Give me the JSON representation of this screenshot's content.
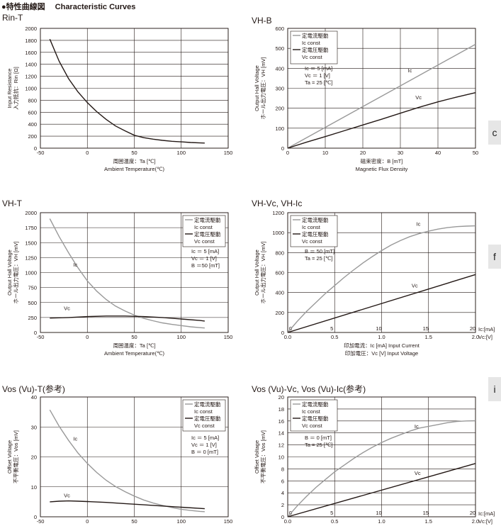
{
  "header": {
    "title": "●特性曲線図",
    "subtitle": "Characteristic Curves"
  },
  "side_tabs": [
    "c",
    "f",
    "i"
  ],
  "chart_data": [
    {
      "id": "rin",
      "title_main": "Rin-T",
      "title_sub": "",
      "type": "line",
      "xlabel": [
        "周囲温度：Ta [℃]",
        "Ambient Temperature(℃)"
      ],
      "ylabel": [
        "Input Resistance",
        "入力抵抗：Rin [Ω]"
      ],
      "xlim": [
        -50,
        150
      ],
      "xticks": [
        -50,
        0,
        50,
        100,
        150
      ],
      "ylim": [
        0,
        2000
      ],
      "yticks": [
        0,
        200,
        400,
        600,
        800,
        1000,
        1200,
        1400,
        1600,
        1800,
        2000
      ],
      "extra_x_labels": [],
      "series": [
        {
          "name": "",
          "color": "#231815",
          "x": [
            -40,
            -30,
            -20,
            -10,
            0,
            10,
            20,
            30,
            40,
            50,
            60,
            70,
            80,
            90,
            100,
            110,
            120,
            125
          ],
          "y": [
            1820,
            1450,
            1160,
            940,
            760,
            610,
            480,
            370,
            290,
            215,
            175,
            150,
            130,
            115,
            105,
            95,
            88,
            85
          ]
        }
      ],
      "legend": [],
      "conditions": [],
      "series_labels": []
    },
    {
      "id": "vhb",
      "title_main": "VH-B",
      "title_sub": "",
      "type": "line",
      "xlabel": [
        "磁束密度：B [mT]",
        "Magnetic Flux Density"
      ],
      "ylabel": [
        "Output Hall Voltage",
        "ホール出力電圧：VH [mV]"
      ],
      "xlim": [
        0,
        50
      ],
      "xticks": [
        0,
        10,
        20,
        30,
        40,
        50
      ],
      "ylim": [
        0,
        600
      ],
      "yticks": [
        0,
        100,
        200,
        300,
        400,
        500,
        600
      ],
      "extra_x_labels": [],
      "series": [
        {
          "name": "Ic",
          "color": "#999999",
          "x": [
            0,
            50
          ],
          "y": [
            0,
            520
          ]
        },
        {
          "name": "Vc",
          "color": "#231815",
          "x": [
            0,
            5,
            10,
            15,
            20,
            25,
            30,
            35,
            40,
            45,
            50
          ],
          "y": [
            0,
            30,
            58,
            87,
            116,
            145,
            175,
            205,
            232,
            256,
            278
          ]
        }
      ],
      "legend": [
        {
          "text": "定電流駆動",
          "color": "#999999"
        },
        {
          "text": "Ic const",
          "color": ""
        },
        {
          "text": "定電圧駆動",
          "color": "#231815"
        },
        {
          "text": "Vc const",
          "color": ""
        }
      ],
      "conditions": [
        "Ic ＝ 5 [mA]",
        "Vc ＝ 1 [V]",
        "Ta = 25 [℃]"
      ],
      "series_labels": [
        {
          "text": "Ic",
          "x": 32,
          "y": 380
        },
        {
          "text": "Vc",
          "x": 34,
          "y": 245
        }
      ]
    },
    {
      "id": "vht",
      "title_main": "VH-T",
      "title_sub": "",
      "type": "line",
      "xlabel": [
        "周囲温度：Ta [℃]",
        "Ambient Temperature(℃)"
      ],
      "ylabel": [
        "Output Hall Voltage",
        "ホール出力電圧：VH [mV]"
      ],
      "xlim": [
        -50,
        150
      ],
      "xticks": [
        -50,
        0,
        50,
        100,
        150
      ],
      "ylim": [
        0,
        2000
      ],
      "yticks": [
        0,
        250,
        500,
        750,
        1000,
        1250,
        1500,
        1750,
        2000
      ],
      "extra_x_labels": [],
      "series": [
        {
          "name": "Ic",
          "color": "#999999",
          "x": [
            -40,
            -30,
            -20,
            -10,
            0,
            10,
            20,
            30,
            40,
            50,
            60,
            70,
            80,
            90,
            100,
            110,
            120,
            125
          ],
          "y": [
            1900,
            1600,
            1330,
            1080,
            860,
            690,
            550,
            440,
            360,
            290,
            235,
            195,
            160,
            135,
            115,
            95,
            80,
            75
          ]
        },
        {
          "name": "Vc",
          "color": "#231815",
          "x": [
            -40,
            -20,
            0,
            20,
            40,
            60,
            80,
            100,
            120,
            125
          ],
          "y": [
            240,
            250,
            265,
            275,
            275,
            265,
            250,
            225,
            200,
            190
          ]
        }
      ],
      "legend": [
        {
          "text": "定電流駆動",
          "color": "#999999"
        },
        {
          "text": "Ic const",
          "color": ""
        },
        {
          "text": "定電圧駆動",
          "color": "#231815"
        },
        {
          "text": "Vc const",
          "color": ""
        }
      ],
      "conditions": [
        "Ic ＝ 5 [mA]",
        "Vc ＝ 1 [V]",
        "B ＝50 [mT]"
      ],
      "series_labels": [
        {
          "text": "Ic",
          "x": -15,
          "y": 1100
        },
        {
          "text": "Vc",
          "x": -25,
          "y": 370
        }
      ]
    },
    {
      "id": "vhvc",
      "title_main": "VH-Vc, VH-Ic",
      "title_sub": "",
      "type": "line",
      "xlabel": [
        "印加電流：Ic [mA] Input Current",
        "印加電圧：Vc [V] Input Voltage"
      ],
      "ylabel": [
        "Output Hall Voltage",
        "ホール出力電圧：VH [mV]"
      ],
      "xlim": [
        0,
        2
      ],
      "xticks": [
        0,
        0.5,
        1.0,
        1.5,
        2.0
      ],
      "xtick_labels": [
        "0.0",
        "0.5",
        "1.0",
        "1.5",
        "2.0"
      ],
      "xunit": "Vc:[V]",
      "ylim": [
        0,
        1200
      ],
      "yticks": [
        0,
        200,
        400,
        600,
        800,
        1000,
        1200
      ],
      "extra_x_labels": [
        "0",
        "5",
        "10",
        "15",
        "20"
      ],
      "extra_unit": "Ic:[mA]",
      "series": [
        {
          "name": "Ic",
          "color": "#999999",
          "x": [
            0,
            0.1,
            0.2,
            0.3,
            0.4,
            0.5,
            0.6,
            0.7,
            0.8,
            0.9,
            1.0,
            1.1,
            1.2,
            1.3,
            1.4,
            1.5,
            1.6,
            1.7,
            1.8,
            1.9,
            2.0
          ],
          "y": [
            0,
            110,
            210,
            300,
            390,
            470,
            550,
            625,
            695,
            760,
            820,
            875,
            920,
            960,
            990,
            1015,
            1035,
            1050,
            1060,
            1065,
            1068
          ]
        },
        {
          "name": "Vc",
          "color": "#231815",
          "x": [
            0,
            2.0
          ],
          "y": [
            0,
            580
          ]
        }
      ],
      "legend": [
        {
          "text": "定電流駆動",
          "color": "#999999"
        },
        {
          "text": "Ic const",
          "color": ""
        },
        {
          "text": "定電圧駆動",
          "color": "#231815"
        },
        {
          "text": "Vc const",
          "color": ""
        }
      ],
      "conditions": [
        "B ＝ 50 [mT]",
        "Ta = 25 [℃]"
      ],
      "series_labels": [
        {
          "text": "Ic",
          "x": 1.37,
          "y": 1070
        },
        {
          "text": "Vc",
          "x": 1.32,
          "y": 450
        }
      ]
    },
    {
      "id": "vost",
      "title_main": "Vos (Vu)-T",
      "title_sub": "(参考)",
      "type": "line",
      "xlabel": [
        "",
        ""
      ],
      "ylabel": [
        "Offset Voltage",
        "不平衡電圧：Vos [mV]"
      ],
      "xlim": [
        -50,
        150
      ],
      "xticks": [
        -50,
        0,
        50,
        100,
        150
      ],
      "ylim": [
        0,
        40
      ],
      "yticks": [
        0,
        10,
        20,
        30,
        40
      ],
      "extra_x_labels": [],
      "series": [
        {
          "name": "Ic",
          "color": "#999999",
          "x": [
            -40,
            -30,
            -20,
            -10,
            0,
            10,
            20,
            30,
            40,
            50,
            60,
            70,
            80,
            90,
            100,
            110,
            120,
            125
          ],
          "y": [
            35.7,
            30.2,
            25.5,
            21.3,
            17.8,
            14.8,
            12.2,
            10.1,
            8.4,
            6.9,
            5.6,
            4.6,
            3.8,
            3.1,
            2.5,
            2.1,
            1.8,
            1.7
          ]
        },
        {
          "name": "Vc",
          "color": "#231815",
          "x": [
            -40,
            -30,
            -20,
            -10,
            0,
            20,
            40,
            60,
            80,
            100,
            125
          ],
          "y": [
            5.0,
            5.2,
            5.3,
            5.2,
            5.1,
            4.8,
            4.4,
            4.0,
            3.6,
            3.2,
            2.7
          ]
        }
      ],
      "legend": [
        {
          "text": "定電流駆動",
          "color": "#999999"
        },
        {
          "text": "Ic const",
          "color": ""
        },
        {
          "text": "定電圧駆動",
          "color": "#231815"
        },
        {
          "text": "Vc const",
          "color": ""
        }
      ],
      "conditions": [
        "Ic ＝ 5 [mA]",
        "Vc ＝ 1 [V]",
        "B ＝ 0 [mT]"
      ],
      "series_labels": [
        {
          "text": "Ic",
          "x": -15,
          "y": 25.5
        },
        {
          "text": "Vc",
          "x": -25,
          "y": 6.5
        }
      ]
    },
    {
      "id": "vosvc",
      "title_main": "Vos (Vu)-Vc, Vos (Vu)-Ic",
      "title_sub": "(参考)",
      "type": "line",
      "xlabel": [
        "",
        ""
      ],
      "ylabel": [
        "Offset Voltage",
        "不平衡電圧：Vos [mV]"
      ],
      "xlim": [
        0,
        2
      ],
      "xticks": [
        0,
        0.5,
        1.0,
        1.5,
        2.0
      ],
      "xtick_labels": [
        "0.0",
        "0.5",
        "1.0",
        "1.5",
        "2.0"
      ],
      "xunit": "Vc:[V]",
      "ylim": [
        0,
        20
      ],
      "yticks": [
        0,
        2,
        4,
        6,
        8,
        10,
        12,
        14,
        16,
        18,
        20
      ],
      "extra_x_labels": [
        "0",
        "5",
        "10",
        "15",
        "20"
      ],
      "extra_unit": "Ic:[mA]",
      "series": [
        {
          "name": "Ic",
          "color": "#999999",
          "x": [
            0,
            0.1,
            0.2,
            0.3,
            0.4,
            0.5,
            0.6,
            0.7,
            0.8,
            0.9,
            1.0,
            1.1,
            1.2,
            1.3,
            1.4,
            1.5,
            1.6,
            1.7,
            1.8,
            1.9,
            2.0
          ],
          "y": [
            0,
            1.8,
            3.4,
            4.9,
            6.2,
            7.5,
            8.6,
            9.7,
            10.7,
            11.6,
            12.4,
            13.1,
            13.7,
            14.3,
            14.8,
            15.1,
            15.4,
            15.7,
            15.9,
            16.0,
            16.05
          ]
        },
        {
          "name": "Vc",
          "color": "#231815",
          "x": [
            0,
            2.0
          ],
          "y": [
            0,
            8.9
          ]
        }
      ],
      "legend": [
        {
          "text": "定電流駆動",
          "color": "#999999"
        },
        {
          "text": "Ic const",
          "color": ""
        },
        {
          "text": "定電圧駆動",
          "color": "#231815"
        },
        {
          "text": "Vc const",
          "color": ""
        }
      ],
      "conditions": [
        "B ＝ 0 [mT]",
        "Ta = 25 [℃]"
      ],
      "series_labels": [
        {
          "text": "Ic",
          "x": 1.35,
          "y": 14.8
        },
        {
          "text": "Vc",
          "x": 1.35,
          "y": 7.0
        }
      ]
    }
  ]
}
